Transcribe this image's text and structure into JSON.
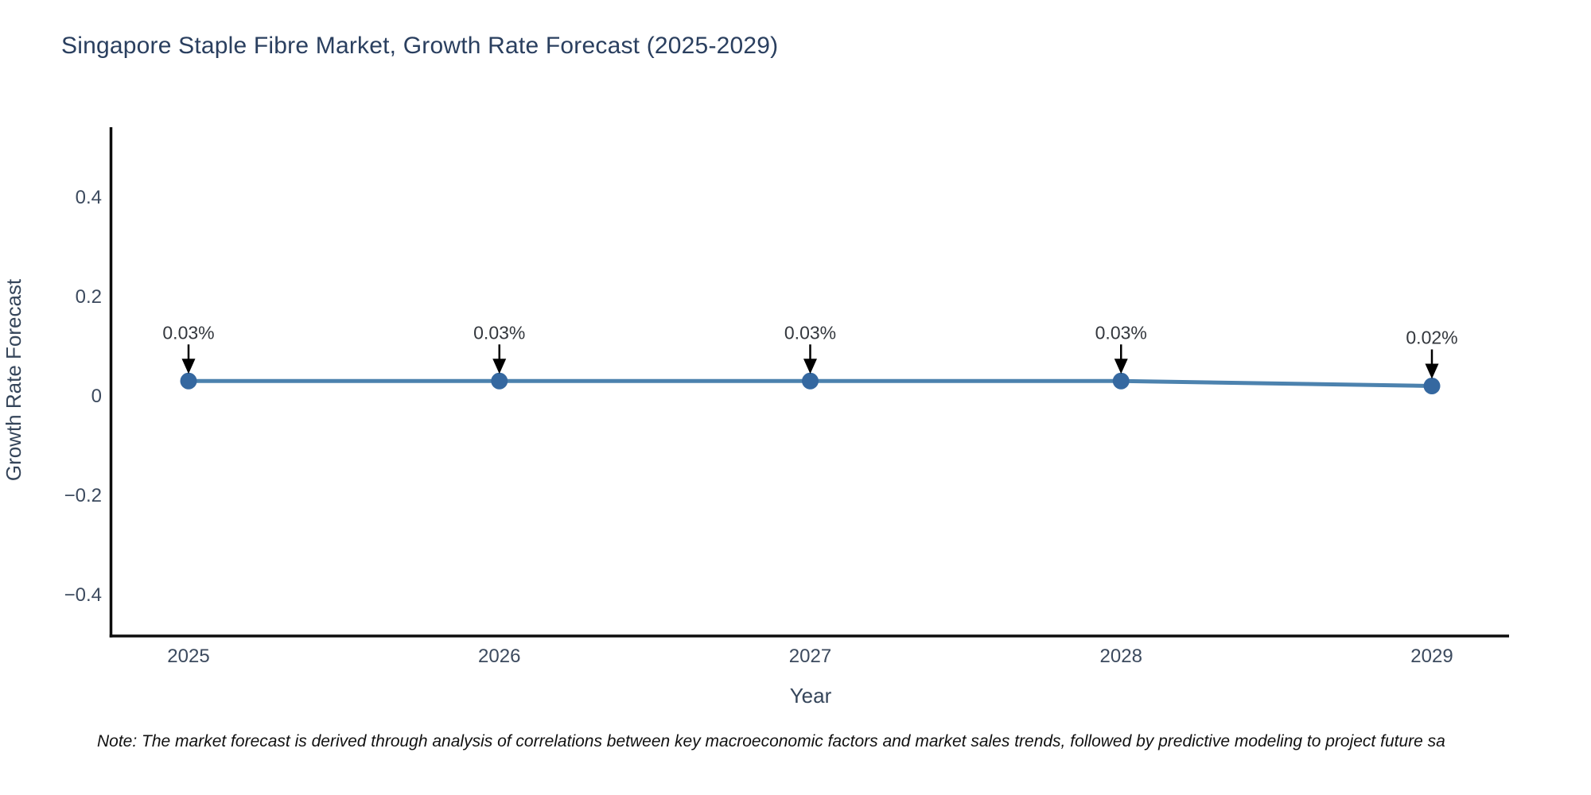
{
  "note": "Note: The market forecast is derived through analysis of correlations between key macroeconomic factors and market sales trends, followed by predictive modeling to project future sa",
  "chart_data": {
    "type": "line",
    "title": "Singapore Staple Fibre Market, Growth Rate Forecast (2025-2029)",
    "xlabel": "Year",
    "ylabel": "Growth Rate Forecast",
    "x": [
      2025,
      2026,
      2027,
      2028,
      2029
    ],
    "categories": [
      "2025",
      "2026",
      "2027",
      "2028",
      "2029"
    ],
    "values": [
      0.03,
      0.03,
      0.03,
      0.03,
      0.02
    ],
    "point_labels": [
      "0.03%",
      "0.03%",
      "0.03%",
      "0.03%",
      "0.02%"
    ],
    "y_ticks": [
      {
        "value": 0.4,
        "label": "0.4"
      },
      {
        "value": 0.2,
        "label": "0.2"
      },
      {
        "value": 0,
        "label": "0"
      },
      {
        "value": -0.2,
        "label": "−0.2"
      },
      {
        "value": -0.4,
        "label": "−0.4"
      }
    ],
    "ylim": [
      -0.48,
      0.54
    ],
    "grid": false,
    "legend": "none",
    "marker_shape": "circle",
    "annotation_arrow": "down-arrow",
    "colors": {
      "line": "#4c82ae",
      "marker": "#3568a0",
      "arrow": "#000000",
      "axis": "#0d0d0d",
      "title_text": "#2a3f5f",
      "axis_title_text": "#35455a",
      "tick_text": "#3c4a5e",
      "annotation_text": "#33373d",
      "note_text": "#111111",
      "background": "#ffffff"
    }
  }
}
